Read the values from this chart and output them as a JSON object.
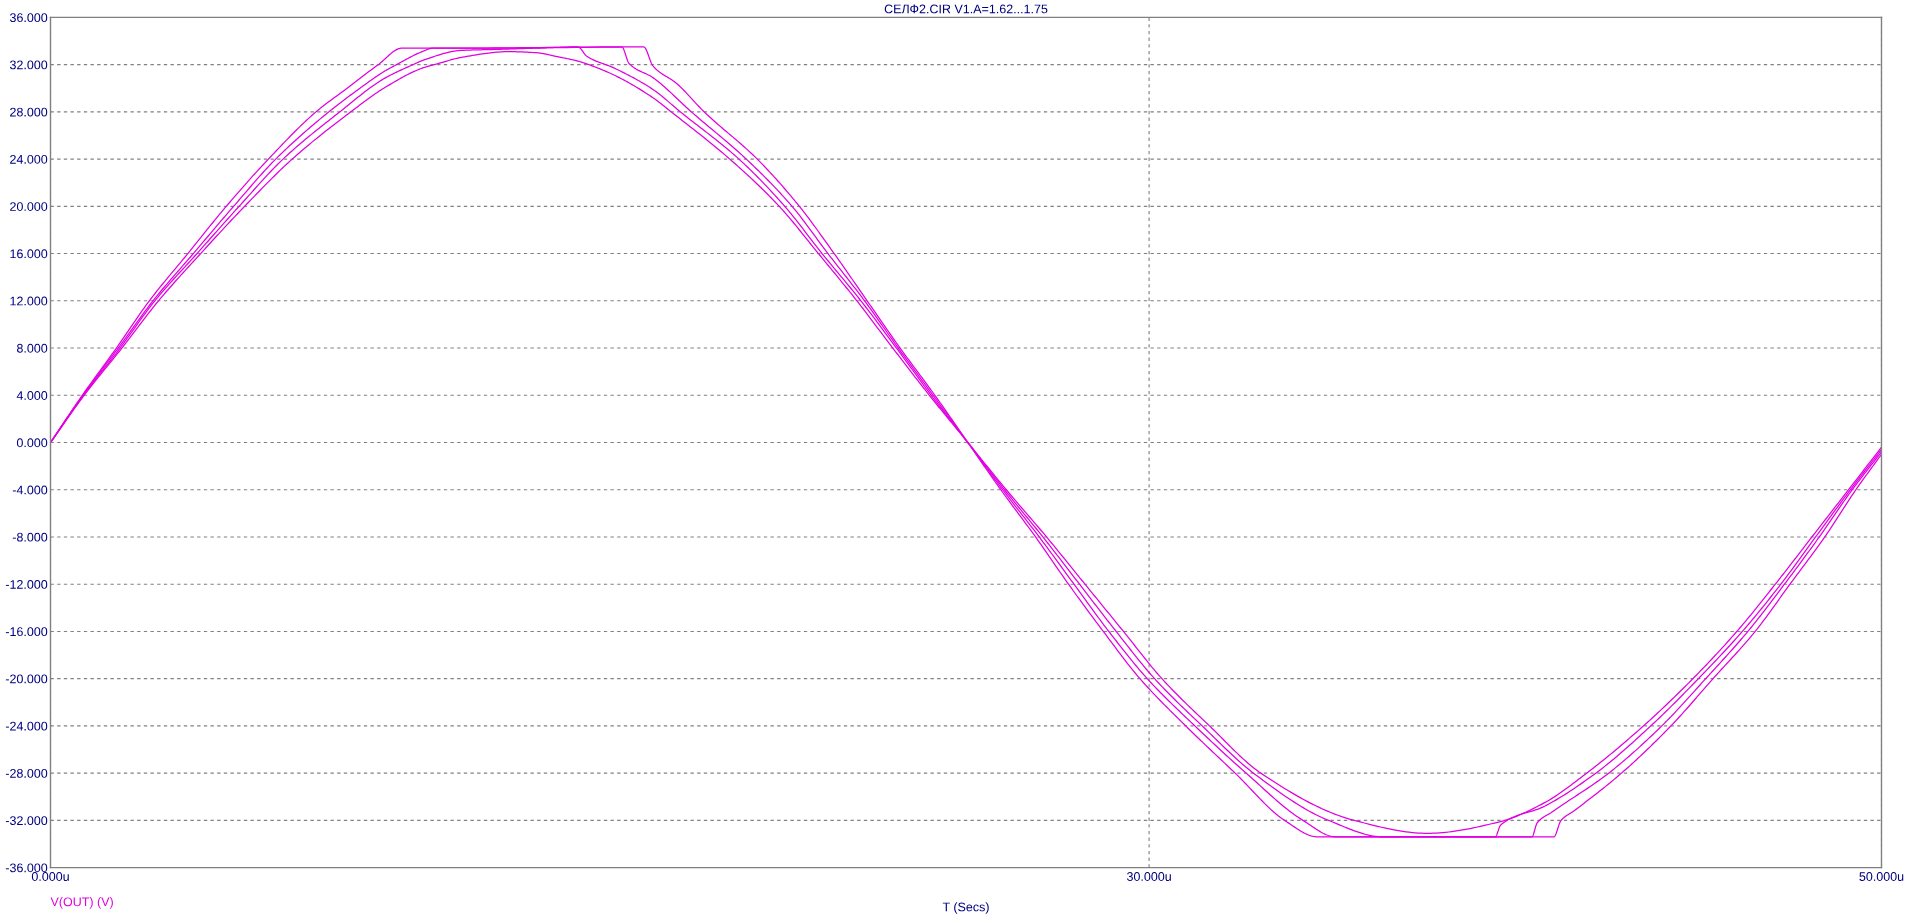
{
  "chart_data": {
    "type": "line",
    "title": "СЕЛФ2.CIR V1.A=1.62...1.75",
    "xlabel": "T (Secs)",
    "annotations": [
      "V(OUT) (V)"
    ],
    "xlim": [
      0,
      50
    ],
    "xticks": [
      {
        "value": 0,
        "label": "0.000u"
      },
      {
        "value": 30,
        "label": "30.000u"
      },
      {
        "value": 50,
        "label": "50.000u"
      }
    ],
    "ylim": [
      -36,
      36
    ],
    "yticks": [
      {
        "value": -36,
        "label": "-36.000"
      },
      {
        "value": -32,
        "label": "-32.000"
      },
      {
        "value": -28,
        "label": "-28.000"
      },
      {
        "value": -24,
        "label": "-24.000"
      },
      {
        "value": -20,
        "label": "-20.000"
      },
      {
        "value": -16,
        "label": "-16.000"
      },
      {
        "value": -12,
        "label": "-12.000"
      },
      {
        "value": -8,
        "label": "-8.000"
      },
      {
        "value": -4,
        "label": "-4.000"
      },
      {
        "value": 0,
        "label": "0.000"
      },
      {
        "value": 4,
        "label": "4.000"
      },
      {
        "value": 8,
        "label": "8.000"
      },
      {
        "value": 12,
        "label": "12.000"
      },
      {
        "value": 16,
        "label": "16.000"
      },
      {
        "value": 20,
        "label": "20.000"
      },
      {
        "value": 24,
        "label": "24.000"
      },
      {
        "value": 28,
        "label": "28.000"
      },
      {
        "value": 32,
        "label": "32.000"
      },
      {
        "value": 36,
        "label": "36.000"
      }
    ],
    "grid": true,
    "series": [
      {
        "color": "#e000e0",
        "x": [
          0,
          0.87,
          1.8,
          2.7,
          3.75,
          4.8,
          5.95,
          7.25,
          8.1,
          8.95,
          9.6,
          12,
          16.2,
          16.45,
          17.1,
          17.85,
          19.3,
          20.45,
          21.4,
          22.3,
          23.2,
          24.15,
          25.05,
          25.95,
          26.9,
          27.8,
          28.75,
          29.75,
          31.0,
          32.35,
          33.7,
          34.6,
          41.05,
          41.25,
          41.6,
          42.9,
          44.25,
          45.4,
          46.55,
          47.5,
          48.45,
          49.3,
          50
        ],
        "values": [
          0,
          4,
          8,
          12,
          16,
          20,
          24,
          28,
          30,
          32,
          33.4,
          33.4,
          33.5,
          31.9,
          30.4,
          28,
          24,
          20,
          16,
          12,
          8,
          4,
          0,
          -4,
          -8,
          -12,
          -16,
          -20,
          -24,
          -28,
          -32,
          -33.4,
          -33.4,
          -32,
          -31.2,
          -28,
          -24,
          -20,
          -16,
          -12,
          -8,
          -4,
          -1
        ]
      },
      {
        "color": "#e000e0",
        "x": [
          0,
          0.88,
          1.85,
          2.8,
          3.9,
          5.0,
          6.15,
          7.6,
          8.45,
          9.1,
          9.45,
          10.15,
          10.45,
          11.2,
          15.6,
          15.8,
          16.45,
          17.5,
          19.0,
          20.25,
          21.23,
          22.23,
          23.15,
          24.1,
          25.05,
          26.0,
          27.0,
          27.95,
          28.9,
          29.95,
          31.25,
          32.65,
          34.2,
          35.1,
          40.45,
          40.6,
          41.0,
          42.55,
          44.0,
          45.2,
          46.35,
          47.35,
          48.3,
          49.2,
          50
        ],
        "values": [
          0,
          4,
          8,
          12,
          16,
          20,
          24,
          28,
          30,
          31.4,
          32,
          33.1,
          33.4,
          33.4,
          33.5,
          32.1,
          30.9,
          28,
          24,
          20,
          16,
          12,
          8,
          4,
          0,
          -4,
          -8,
          -12,
          -16,
          -20,
          -24,
          -28,
          -32,
          -33.4,
          -33.4,
          -32.2,
          -31.3,
          -28,
          -24,
          -20,
          -16,
          -12,
          -8,
          -4,
          -0.8
        ]
      },
      {
        "color": "#e000e0",
        "x": [
          0,
          0.9,
          1.9,
          2.85,
          4.0,
          5.15,
          6.35,
          7.9,
          9.1,
          9.9,
          10.2,
          11.2,
          12.3,
          13.3,
          14.4,
          14.65,
          15.4,
          16.45,
          17.2,
          18.8,
          20.05,
          21.07,
          22.13,
          23.1,
          24.05,
          25.05,
          26.05,
          27.1,
          28.1,
          29.1,
          30.15,
          31.45,
          32.85,
          34.9,
          36.4,
          39.45,
          39.6,
          40.8,
          42.2,
          43.7,
          45.0,
          46.2,
          47.25,
          48.2,
          49.15,
          50
        ],
        "values": [
          0,
          4,
          8,
          12,
          16,
          20,
          24,
          28,
          30.8,
          32,
          32.4,
          33.2,
          33.3,
          33.4,
          33.5,
          32.7,
          31.7,
          29.9,
          28,
          24,
          20,
          16,
          12,
          8,
          4,
          0,
          -4,
          -8,
          -12,
          -16,
          -20,
          -24,
          -28,
          -32,
          -33.4,
          -33.4,
          -32.4,
          -30.8,
          -28,
          -24,
          -20,
          -16,
          -12,
          -8,
          -4,
          -0.6
        ]
      },
      {
        "color": "#e000e0",
        "x": [
          0,
          0.92,
          1.95,
          2.95,
          4.1,
          5.3,
          6.6,
          8.2,
          9.1,
          10.15,
          10.6,
          11.2,
          12.5,
          13.3,
          13.8,
          14.4,
          14.7,
          15.4,
          16.45,
          16.95,
          18.55,
          19.9,
          20.97,
          22.02,
          23.0,
          24.0,
          25.05,
          26.1,
          27.2,
          28.25,
          29.3,
          30.35,
          31.65,
          33.05,
          35.6,
          37.6,
          39.6,
          40.8,
          41.95,
          43.5,
          44.85,
          46.05,
          47.1,
          48.1,
          49.1,
          50
        ],
        "values": [
          0,
          4,
          8,
          12,
          16,
          20,
          24,
          28,
          30,
          31.7,
          32.1,
          32.6,
          33.1,
          33,
          32.7,
          32.3,
          32,
          31.1,
          29.2,
          28,
          24,
          20,
          16,
          12,
          8,
          4,
          0,
          -4,
          -8,
          -12,
          -16,
          -20,
          -24,
          -28,
          -32,
          -33.1,
          -32.1,
          -30.5,
          -28,
          -24,
          -20,
          -16,
          -12,
          -8,
          -4,
          -0.4
        ]
      }
    ]
  }
}
